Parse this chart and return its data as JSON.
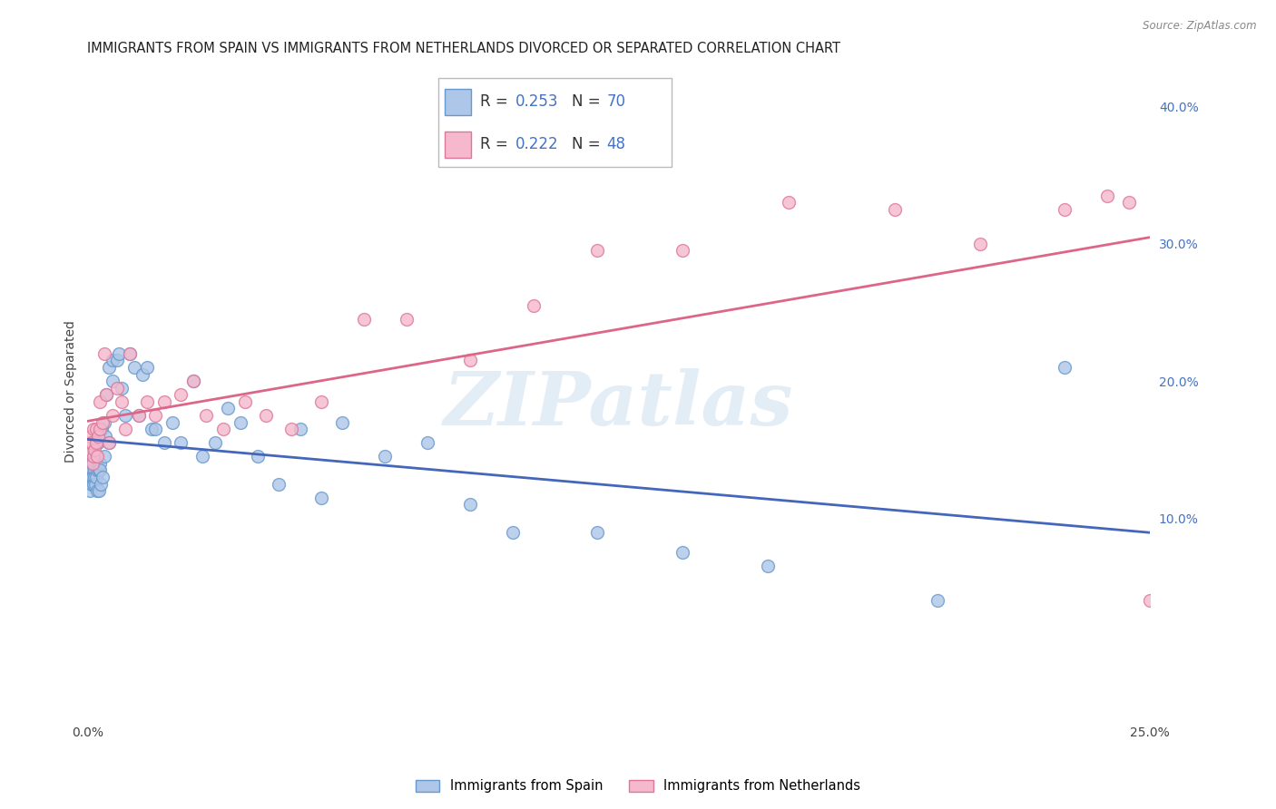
{
  "title": "IMMIGRANTS FROM SPAIN VS IMMIGRANTS FROM NETHERLANDS DIVORCED OR SEPARATED CORRELATION CHART",
  "source": "Source: ZipAtlas.com",
  "ylabel": "Divorced or Separated",
  "xlim": [
    0.0,
    0.25
  ],
  "ylim": [
    -0.045,
    0.43
  ],
  "right_yticks": [
    0.1,
    0.2,
    0.3,
    0.4
  ],
  "right_yticklabels": [
    "10.0%",
    "20.0%",
    "30.0%",
    "40.0%"
  ],
  "xticks": [
    0.0,
    0.05,
    0.1,
    0.15,
    0.2,
    0.25
  ],
  "xticklabels": [
    "0.0%",
    "",
    "",
    "",
    "",
    "25.0%"
  ],
  "background_color": "#ffffff",
  "grid_color": "#d8d8d8",
  "watermark_text": "ZIPatlas",
  "spain_fill": "#aec6e8",
  "spain_edge": "#6699cc",
  "netherlands_fill": "#f5b8cc",
  "netherlands_edge": "#dd7799",
  "spain_line_color": "#4466bb",
  "netherlands_line_color": "#dd6688",
  "title_fontsize": 10.5,
  "axis_label_fontsize": 10,
  "tick_fontsize": 10,
  "marker_size": 100,
  "spain_x": [
    0.0002,
    0.0004,
    0.0005,
    0.0006,
    0.0007,
    0.0008,
    0.0009,
    0.001,
    0.001,
    0.0012,
    0.0013,
    0.0014,
    0.0015,
    0.0015,
    0.0016,
    0.0017,
    0.0018,
    0.002,
    0.002,
    0.0022,
    0.0023,
    0.0025,
    0.0026,
    0.0028,
    0.003,
    0.003,
    0.0032,
    0.0033,
    0.0035,
    0.004,
    0.004,
    0.0042,
    0.0045,
    0.005,
    0.005,
    0.006,
    0.006,
    0.007,
    0.0075,
    0.008,
    0.009,
    0.01,
    0.011,
    0.012,
    0.013,
    0.014,
    0.015,
    0.016,
    0.018,
    0.02,
    0.022,
    0.025,
    0.027,
    0.03,
    0.033,
    0.036,
    0.04,
    0.045,
    0.05,
    0.055,
    0.06,
    0.07,
    0.08,
    0.09,
    0.1,
    0.12,
    0.14,
    0.16,
    0.2,
    0.23
  ],
  "spain_y": [
    0.135,
    0.13,
    0.14,
    0.12,
    0.135,
    0.13,
    0.125,
    0.13,
    0.14,
    0.135,
    0.13,
    0.125,
    0.14,
    0.15,
    0.135,
    0.13,
    0.125,
    0.13,
    0.145,
    0.135,
    0.12,
    0.155,
    0.135,
    0.12,
    0.14,
    0.135,
    0.125,
    0.165,
    0.13,
    0.17,
    0.145,
    0.16,
    0.19,
    0.21,
    0.155,
    0.2,
    0.215,
    0.215,
    0.22,
    0.195,
    0.175,
    0.22,
    0.21,
    0.175,
    0.205,
    0.21,
    0.165,
    0.165,
    0.155,
    0.17,
    0.155,
    0.2,
    0.145,
    0.155,
    0.18,
    0.17,
    0.145,
    0.125,
    0.165,
    0.115,
    0.17,
    0.145,
    0.155,
    0.11,
    0.09,
    0.09,
    0.075,
    0.065,
    0.04,
    0.21
  ],
  "netherlands_x": [
    0.0003,
    0.0005,
    0.0007,
    0.001,
    0.0012,
    0.0014,
    0.0015,
    0.0017,
    0.002,
    0.002,
    0.0022,
    0.0025,
    0.003,
    0.003,
    0.0035,
    0.004,
    0.0045,
    0.005,
    0.006,
    0.007,
    0.008,
    0.009,
    0.01,
    0.012,
    0.014,
    0.016,
    0.018,
    0.022,
    0.025,
    0.028,
    0.032,
    0.037,
    0.042,
    0.048,
    0.055,
    0.065,
    0.075,
    0.09,
    0.105,
    0.12,
    0.14,
    0.165,
    0.19,
    0.21,
    0.23,
    0.24,
    0.245,
    0.25
  ],
  "netherlands_y": [
    0.15,
    0.155,
    0.16,
    0.155,
    0.14,
    0.145,
    0.165,
    0.15,
    0.165,
    0.155,
    0.145,
    0.16,
    0.165,
    0.185,
    0.17,
    0.22,
    0.19,
    0.155,
    0.175,
    0.195,
    0.185,
    0.165,
    0.22,
    0.175,
    0.185,
    0.175,
    0.185,
    0.19,
    0.2,
    0.175,
    0.165,
    0.185,
    0.175,
    0.165,
    0.185,
    0.245,
    0.245,
    0.215,
    0.255,
    0.295,
    0.295,
    0.33,
    0.325,
    0.3,
    0.325,
    0.335,
    0.33,
    0.04
  ]
}
